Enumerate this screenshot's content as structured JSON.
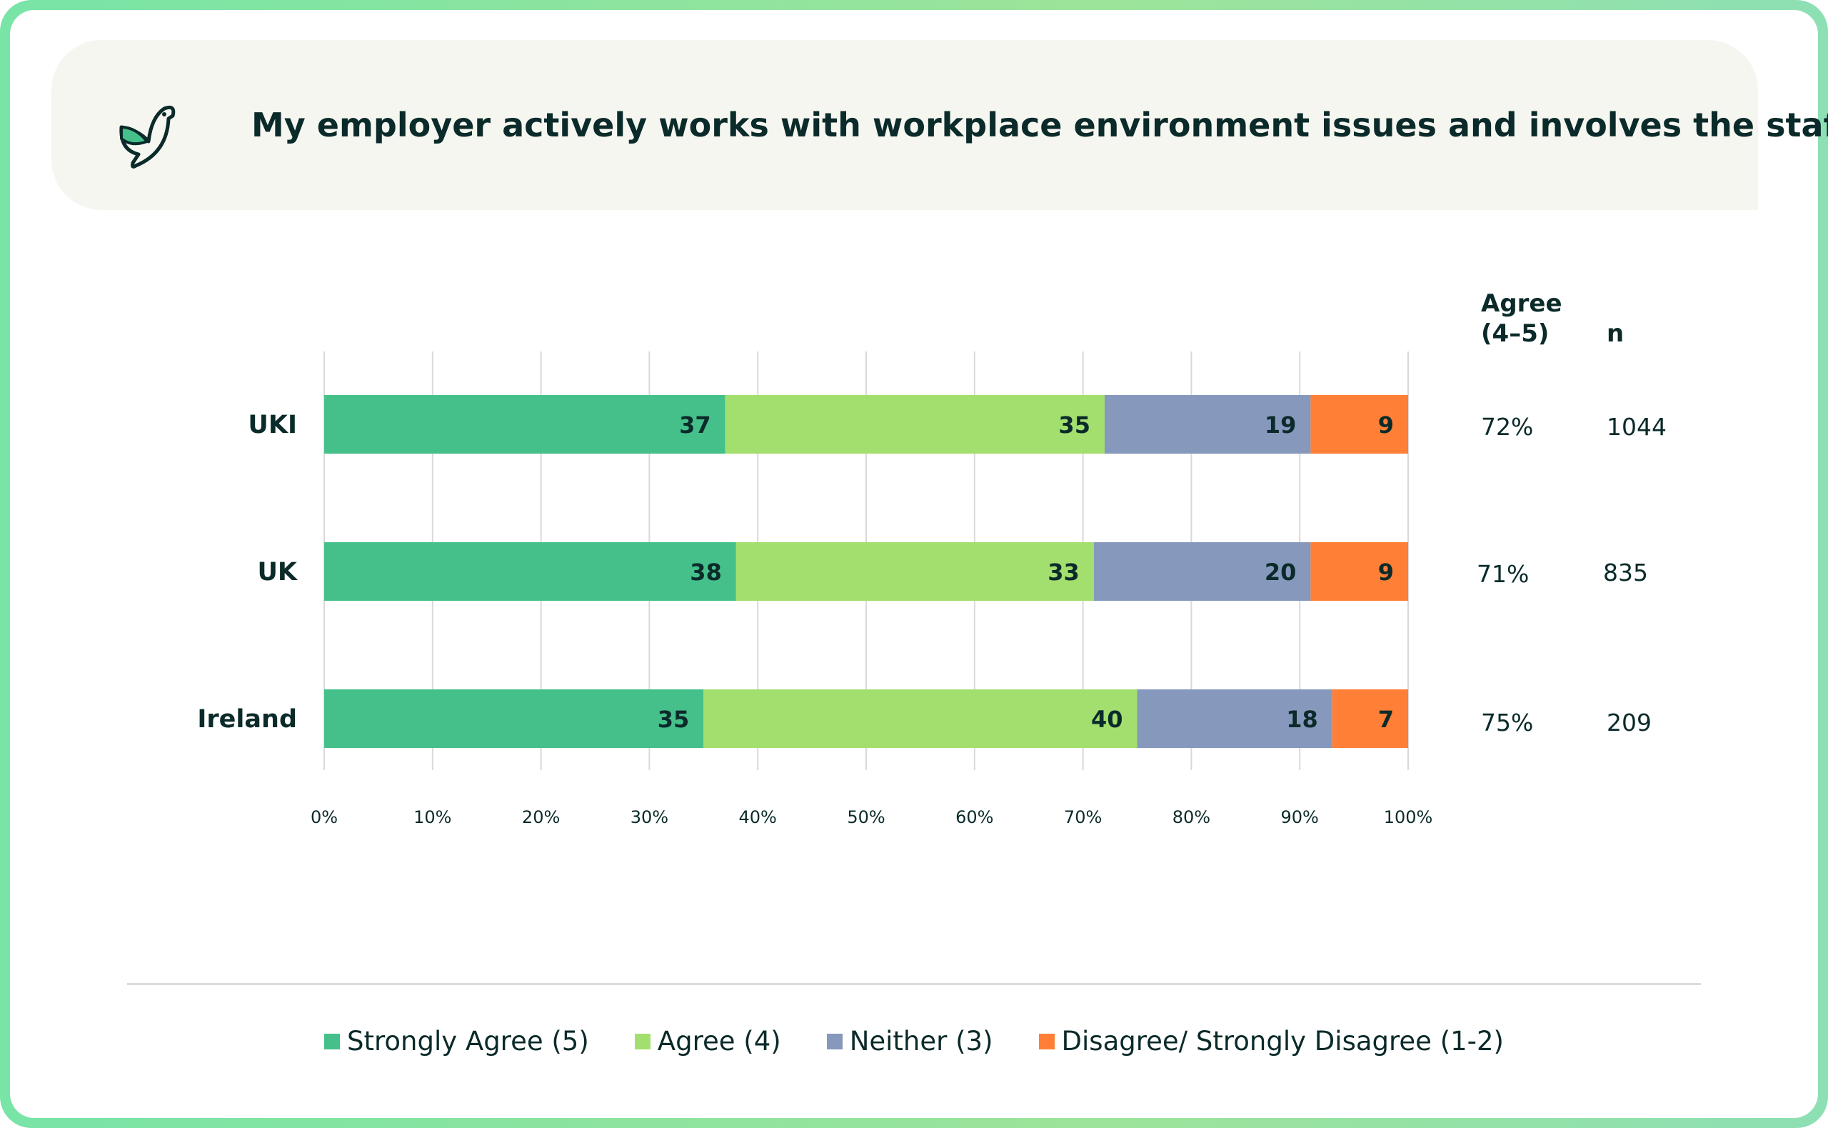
{
  "title": "My employer actively works with workplace environment issues and involves the staff",
  "icon": "bird-icon",
  "columns": {
    "agree_header_line1": "Agree",
    "agree_header_line2": "(4–5)",
    "n_header": "n"
  },
  "rows": [
    {
      "label": "UKI",
      "agree": "72%",
      "n": "1044"
    },
    {
      "label": "UK",
      "agree": "71%",
      "n": "835"
    },
    {
      "label": "Ireland",
      "agree": "75%",
      "n": "209"
    }
  ],
  "legend": [
    {
      "label": "Strongly Agree (5)",
      "color": "#45c08a"
    },
    {
      "label": "Agree (4)",
      "color": "#a3df6e"
    },
    {
      "label": "Neither (3)",
      "color": "#8798bd"
    },
    {
      "label": "Disagree/ Strongly Disagree (1-2)",
      "color": "#ff7f36"
    }
  ],
  "chart_data": {
    "type": "bar",
    "orientation": "horizontal",
    "stacked": true,
    "categories": [
      "UKI",
      "UK",
      "Ireland"
    ],
    "series": [
      {
        "name": "Strongly Agree (5)",
        "values": [
          37,
          38,
          35
        ],
        "color": "#45c08a"
      },
      {
        "name": "Agree (4)",
        "values": [
          35,
          33,
          40
        ],
        "color": "#a3df6e"
      },
      {
        "name": "Neither (3)",
        "values": [
          19,
          20,
          18
        ],
        "color": "#8798bd"
      },
      {
        "name": "Disagree/ Strongly Disagree (1-2)",
        "values": [
          9,
          9,
          7
        ],
        "color": "#ff7f36"
      }
    ],
    "xlim": [
      0,
      100
    ],
    "x_ticks": [
      "0%",
      "10%",
      "20%",
      "30%",
      "40%",
      "50%",
      "60%",
      "70%",
      "80%",
      "90%",
      "100%"
    ],
    "grid": true,
    "legend_position": "bottom"
  }
}
